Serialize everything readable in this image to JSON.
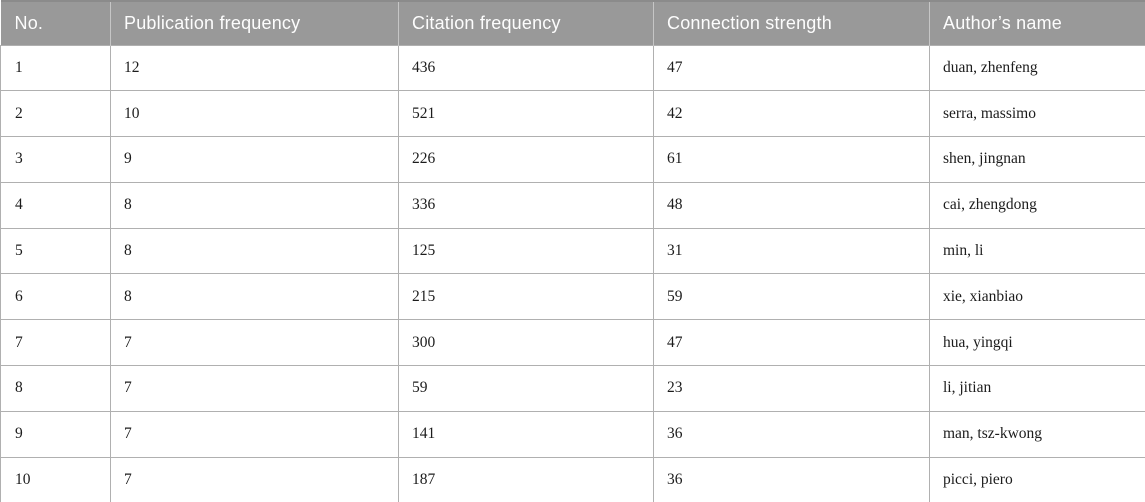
{
  "colors": {
    "header_bg": "#999999",
    "header_top_border": "#8b8b8b",
    "header_separator": "#c6c6c6",
    "header_text": "#fdfdfd",
    "cell_border": "#b0b0b0",
    "row_bg": "#ffffff",
    "body_text": "#1c1c1c"
  },
  "table": {
    "columns": [
      {
        "key": "no",
        "label": "No."
      },
      {
        "key": "publication_frequency",
        "label": "Publication frequency"
      },
      {
        "key": "citation_frequency",
        "label": "Citation frequency"
      },
      {
        "key": "connection_strength",
        "label": "Connection strength"
      },
      {
        "key": "author_name",
        "label": "Author’s name"
      }
    ],
    "rows": [
      {
        "no": "1",
        "publication_frequency": "12",
        "citation_frequency": "436",
        "connection_strength": "47",
        "author_name": "duan, zhenfeng"
      },
      {
        "no": "2",
        "publication_frequency": "10",
        "citation_frequency": "521",
        "connection_strength": "42",
        "author_name": "serra, massimo"
      },
      {
        "no": "3",
        "publication_frequency": "9",
        "citation_frequency": "226",
        "connection_strength": "61",
        "author_name": "shen, jingnan"
      },
      {
        "no": "4",
        "publication_frequency": "8",
        "citation_frequency": "336",
        "connection_strength": "48",
        "author_name": "cai, zhengdong"
      },
      {
        "no": "5",
        "publication_frequency": "8",
        "citation_frequency": "125",
        "connection_strength": "31",
        "author_name": "min, li"
      },
      {
        "no": "6",
        "publication_frequency": "8",
        "citation_frequency": "215",
        "connection_strength": "59",
        "author_name": "xie, xianbiao"
      },
      {
        "no": "7",
        "publication_frequency": "7",
        "citation_frequency": "300",
        "connection_strength": "47",
        "author_name": "hua, yingqi"
      },
      {
        "no": "8",
        "publication_frequency": "7",
        "citation_frequency": "59",
        "connection_strength": "23",
        "author_name": "li, jitian"
      },
      {
        "no": "9",
        "publication_frequency": "7",
        "citation_frequency": "141",
        "connection_strength": "36",
        "author_name": "man, tsz-kwong"
      },
      {
        "no": "10",
        "publication_frequency": "7",
        "citation_frequency": "187",
        "connection_strength": "36",
        "author_name": "picci, piero"
      }
    ]
  }
}
